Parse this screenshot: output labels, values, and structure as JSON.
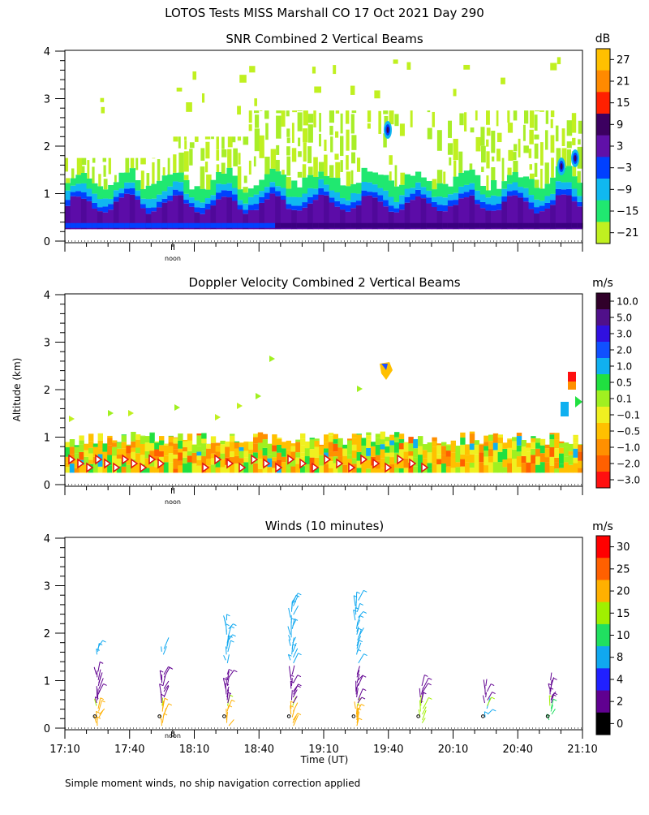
{
  "title": "LOTOS Tests MISS Marshall CO  17 Oct 2021 Day 290",
  "y_axis_label": "Altitude (km)",
  "x_axis_label": "Time (UT)",
  "noon_label": "noon",
  "footnote": "Simple moment winds, no ship navigation correction applied",
  "x_ticks": [
    "17:10",
    "17:40",
    "18:10",
    "18:40",
    "19:10",
    "19:40",
    "20:10",
    "20:40",
    "21:10"
  ],
  "y_ticks": [
    "0",
    "1",
    "2",
    "3",
    "4"
  ],
  "chart_data": [
    {
      "type": "heatmap",
      "title": "SNR Combined 2 Vertical Beams",
      "colorbar_unit": "dB",
      "colorbar_ticks": [
        "27",
        "21",
        "15",
        "9",
        "3",
        "−3",
        "−9",
        "−15",
        "−21"
      ],
      "colorbar_colors": [
        "#ffc000",
        "#ff8a00",
        "#ff2000",
        "#3c0060",
        "#6010a8",
        "#0040ff",
        "#10b8f0",
        "#20e870",
        "#c0f020"
      ],
      "xlim": [
        "17:10",
        "21:10"
      ],
      "ylim": [
        0,
        4
      ],
      "layers": [
        {
          "label": "strong near-surface echo (3 to 9 dB)",
          "altitude_km": [
            0.25,
            0.75
          ]
        },
        {
          "label": "moderate echo (-9 to -3 dB)",
          "altitude_km": [
            0.75,
            1.0
          ]
        },
        {
          "label": "weak echo (-21 to -15 dB)",
          "altitude_km": [
            1.0,
            2.8
          ]
        }
      ]
    },
    {
      "type": "heatmap",
      "title": "Doppler Velocity Combined 2 Vertical Beams",
      "colorbar_unit": "m/s",
      "colorbar_ticks": [
        "10.0",
        "5.0",
        "3.0",
        "2.0",
        "1.0",
        "0.5",
        "0.1",
        "−0.1",
        "−0.5",
        "−1.0",
        "−2.0",
        "−3.0"
      ],
      "colorbar_colors": [
        "#30002a",
        "#50108a",
        "#3010e0",
        "#1050ff",
        "#10b0f0",
        "#20e040",
        "#a0f020",
        "#f0f020",
        "#ffc000",
        "#ff9000",
        "#ff6000",
        "#ff1010"
      ],
      "xlim": [
        "17:10",
        "21:10"
      ],
      "ylim": [
        0,
        4
      ],
      "layers": [
        {
          "label": "mixed small vertical velocities (-1.0 to 1.0 m/s)",
          "altitude_km": [
            0.25,
            1.2
          ]
        }
      ]
    },
    {
      "type": "wind_barbs",
      "title": "Winds (10 minutes)",
      "colorbar_unit": "m/s",
      "colorbar_ticks": [
        "30",
        "25",
        "20",
        "15",
        "10",
        "8",
        "4",
        "2",
        "0"
      ],
      "colorbar_colors": [
        "#ff0000",
        "#ff6000",
        "#ffb000",
        "#a0f000",
        "#20e060",
        "#10a8f0",
        "#2020ff",
        "#600090",
        "#000000"
      ],
      "xlim": [
        "17:10",
        "21:10"
      ],
      "ylim": [
        0,
        4
      ],
      "profile_times": [
        "17:25",
        "17:55",
        "18:25",
        "18:55",
        "19:25",
        "19:55",
        "20:25",
        "20:55"
      ]
    }
  ]
}
